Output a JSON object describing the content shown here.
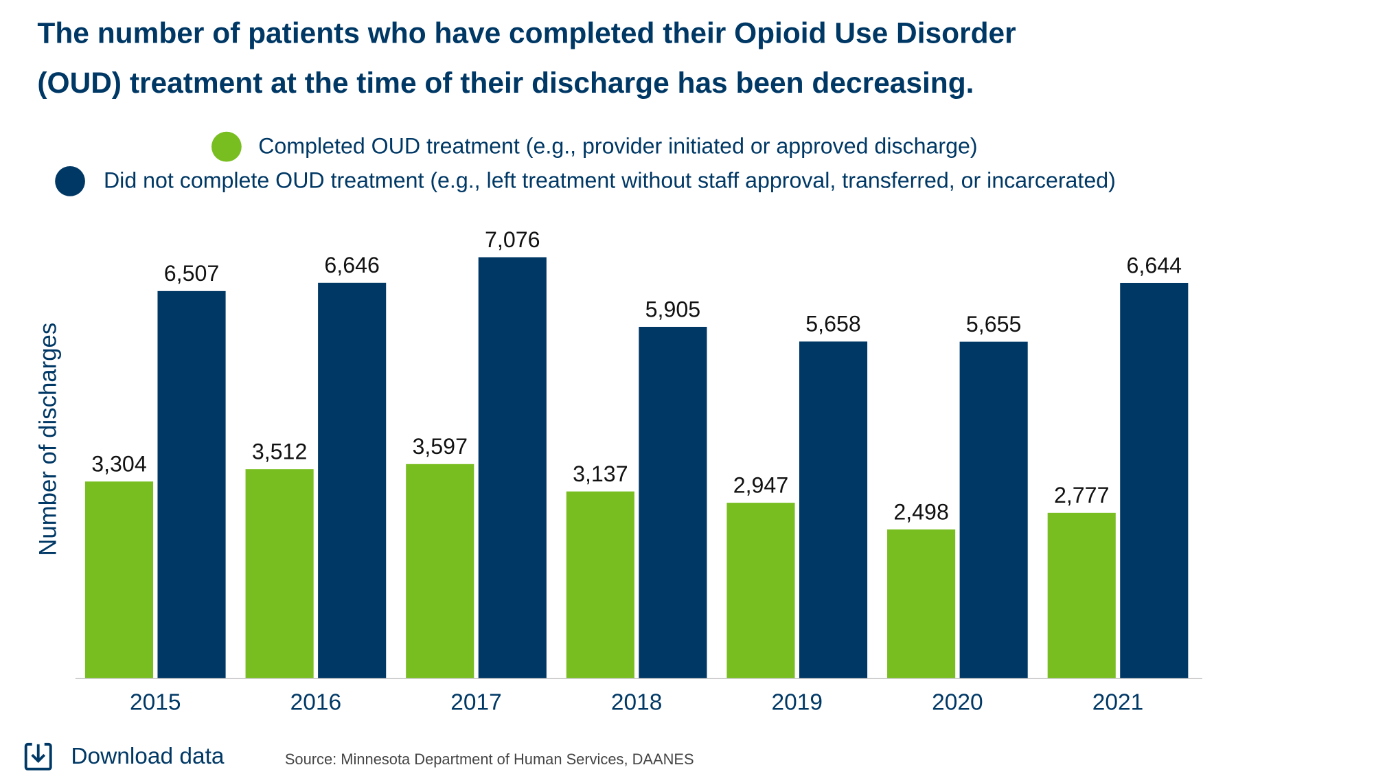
{
  "chart_data": {
    "type": "bar",
    "title": [
      "The number of patients who have completed their Opioid Use Disorder",
      "(OUD) treatment at the time of their discharge has been decreasing."
    ],
    "y_label": "Number of discharges",
    "categories": [
      "2015",
      "2016",
      "2017",
      "2018",
      "2019",
      "2020",
      "2021"
    ],
    "series": [
      {
        "name": "Completed OUD treatment (e.g., provider initiated or approved discharge)",
        "color": "#78be20",
        "values": [
          3304,
          3512,
          3597,
          3137,
          2947,
          2498,
          2777
        ],
        "value_labels": [
          "3,304",
          "3,512",
          "3,597",
          "3,137",
          "2,947",
          "2,498",
          "2,777"
        ]
      },
      {
        "name": "Did not complete OUD treatment (e.g., left treatment without staff approval, transferred, or incarcerated)",
        "color": "#003865",
        "values": [
          6507,
          6646,
          7076,
          5905,
          5658,
          5655,
          6644
        ],
        "value_labels": [
          "6,507",
          "6,646",
          "7,076",
          "5,905",
          "5,658",
          "5,655",
          "6,644"
        ]
      }
    ],
    "ylim": [
      0,
      7076
    ],
    "download": "Download data",
    "source": "Source: Minnesota Department of Human Services, DAANES"
  }
}
